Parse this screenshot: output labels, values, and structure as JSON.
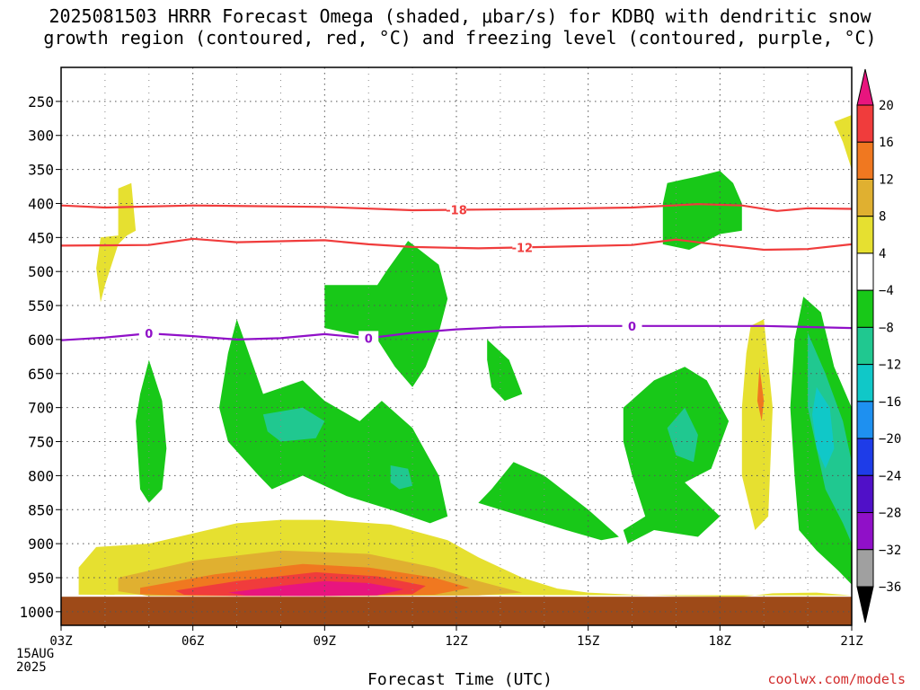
{
  "title": {
    "line1": "2025081503 HRRR Forecast Omega (shaded, μbar/s) for KDBQ with dendritic snow",
    "line2": "growth region (contoured, red, °C) and freezing level (contoured, purple, °C)"
  },
  "xlabel": "Forecast Time (UTC)",
  "credit": "coolwx.com/models",
  "date_label": [
    "15AUG",
    "2025"
  ],
  "chart_data": {
    "type": "heatmap",
    "x_ticks": [
      "03Z",
      "06Z",
      "09Z",
      "12Z",
      "15Z",
      "18Z",
      "21Z"
    ],
    "x_tick_hours": [
      3,
      6,
      9,
      12,
      15,
      18,
      21
    ],
    "y_ticks": [
      250,
      300,
      350,
      400,
      450,
      500,
      550,
      600,
      650,
      700,
      750,
      800,
      850,
      900,
      950,
      1000
    ],
    "y_range_hpa": [
      200,
      1020
    ],
    "surface_pressure_hpa": 978,
    "grid": true,
    "colorbar": {
      "labels": [
        "20",
        "16",
        "12",
        "8",
        "4",
        "−4",
        "−8",
        "−12",
        "−16",
        "−20",
        "−24",
        "−28",
        "−32",
        "−36"
      ],
      "colors": [
        "#e8157e",
        "#f03c3c",
        "#f07820",
        "#e0b030",
        "#e6e030",
        "#ffffff",
        "#18c818",
        "#20c890",
        "#10c8c8",
        "#1e90f0",
        "#1e3ce8",
        "#5010c8",
        "#9010c8",
        "#a0a0a0",
        "#000000"
      ],
      "placement": "right"
    },
    "contours": [
      {
        "label": "-18",
        "color": "#f03c3c",
        "kind": "dendritic_upper",
        "points": [
          [
            3.0,
            403
          ],
          [
            4.0,
            406
          ],
          [
            6.0,
            403
          ],
          [
            9.0,
            405
          ],
          [
            11.0,
            410
          ],
          [
            12.5,
            409
          ],
          [
            14.0,
            408
          ],
          [
            16.0,
            406
          ],
          [
            17.5,
            401
          ],
          [
            18.5,
            403
          ],
          [
            19.3,
            411
          ],
          [
            20.0,
            407
          ],
          [
            21.0,
            408
          ]
        ]
      },
      {
        "label": "-12",
        "color": "#f03c3c",
        "kind": "dendritic_lower",
        "points": [
          [
            3.0,
            462
          ],
          [
            5.0,
            461
          ],
          [
            6.0,
            452
          ],
          [
            7.0,
            457
          ],
          [
            9.0,
            454
          ],
          [
            10.0,
            460
          ],
          [
            11.0,
            464
          ],
          [
            12.5,
            466
          ],
          [
            14.0,
            464
          ],
          [
            16.0,
            461
          ],
          [
            17.0,
            453
          ],
          [
            18.0,
            461
          ],
          [
            19.0,
            468
          ],
          [
            20.0,
            467
          ],
          [
            21.0,
            460
          ]
        ]
      },
      {
        "label": "0",
        "color": "#9010c8",
        "kind": "freezing_level",
        "points": [
          [
            3.0,
            601
          ],
          [
            4.0,
            597
          ],
          [
            5.0,
            591
          ],
          [
            6.0,
            595
          ],
          [
            7.0,
            600
          ],
          [
            8.0,
            598
          ],
          [
            9.0,
            592
          ],
          [
            10.0,
            598
          ],
          [
            11.0,
            590
          ],
          [
            12.0,
            585
          ],
          [
            13.0,
            582
          ],
          [
            15.0,
            580
          ],
          [
            17.0,
            580
          ],
          [
            19.0,
            580
          ],
          [
            21.0,
            583
          ]
        ]
      }
    ],
    "omega_regions": [
      {
        "color": "#e6e030",
        "points": [
          [
            4.3,
            378
          ],
          [
            4.6,
            370
          ],
          [
            4.7,
            440
          ],
          [
            4.5,
            447
          ],
          [
            4.3,
            460
          ],
          [
            4.0,
            520
          ],
          [
            3.9,
            545
          ],
          [
            3.8,
            495
          ],
          [
            3.9,
            450
          ],
          [
            4.3,
            447
          ]
        ]
      },
      {
        "color": "#e6e030",
        "points": [
          [
            20.6,
            280
          ],
          [
            21.0,
            270
          ],
          [
            21.0,
            350
          ],
          [
            20.8,
            310
          ]
        ]
      },
      {
        "color": "#e6e030",
        "points": [
          [
            18.7,
            580
          ],
          [
            19.0,
            570
          ],
          [
            19.2,
            700
          ],
          [
            19.1,
            860
          ],
          [
            18.8,
            880
          ],
          [
            18.5,
            800
          ],
          [
            18.5,
            700
          ],
          [
            18.6,
            620
          ]
        ]
      },
      {
        "color": "#e6e030",
        "points": [
          [
            3.4,
            935
          ],
          [
            3.8,
            905
          ],
          [
            5.0,
            900
          ],
          [
            6.0,
            885
          ],
          [
            7.0,
            870
          ],
          [
            8.0,
            865
          ],
          [
            9.0,
            865
          ],
          [
            10.5,
            872
          ],
          [
            11.8,
            895
          ],
          [
            12.5,
            920
          ],
          [
            13.5,
            950
          ],
          [
            14.3,
            966
          ],
          [
            15.0,
            972
          ],
          [
            16.0,
            975
          ],
          [
            17.0,
            977
          ],
          [
            18.5,
            978
          ],
          [
            19.2,
            973
          ],
          [
            20.2,
            972
          ],
          [
            21.0,
            976
          ],
          [
            3.4,
            975
          ]
        ]
      },
      {
        "color": "#e0b030",
        "points": [
          [
            4.3,
            950
          ],
          [
            6.0,
            925
          ],
          [
            8.0,
            910
          ],
          [
            10.0,
            915
          ],
          [
            11.5,
            935
          ],
          [
            12.5,
            955
          ],
          [
            13.5,
            972
          ],
          [
            12.5,
            976
          ],
          [
            10.0,
            977
          ],
          [
            7.0,
            977
          ],
          [
            5.0,
            977
          ],
          [
            4.3,
            970
          ]
        ]
      },
      {
        "color": "#f07820",
        "points": [
          [
            4.8,
            965
          ],
          [
            6.5,
            945
          ],
          [
            8.5,
            930
          ],
          [
            10.0,
            935
          ],
          [
            11.5,
            950
          ],
          [
            12.3,
            965
          ],
          [
            11.5,
            975
          ],
          [
            9.0,
            977
          ],
          [
            6.0,
            977
          ],
          [
            4.8,
            974
          ]
        ]
      },
      {
        "color": "#f03c3c",
        "points": [
          [
            5.6,
            969
          ],
          [
            7.0,
            955
          ],
          [
            8.8,
            942
          ],
          [
            10.2,
            948
          ],
          [
            11.3,
            962
          ],
          [
            11.0,
            974
          ],
          [
            9.0,
            977
          ],
          [
            7.0,
            977
          ],
          [
            5.8,
            975
          ]
        ]
      },
      {
        "color": "#e8157e",
        "points": [
          [
            6.8,
            972
          ],
          [
            8.0,
            962
          ],
          [
            9.0,
            955
          ],
          [
            10.0,
            958
          ],
          [
            10.8,
            967
          ],
          [
            10.2,
            976
          ],
          [
            8.5,
            977
          ],
          [
            7.2,
            976
          ]
        ]
      },
      {
        "color": "#18c818",
        "points": [
          [
            5.0,
            630
          ],
          [
            5.3,
            690
          ],
          [
            5.4,
            760
          ],
          [
            5.3,
            820
          ],
          [
            5.0,
            840
          ],
          [
            4.8,
            820
          ],
          [
            4.7,
            720
          ],
          [
            4.8,
            680
          ]
        ]
      },
      {
        "color": "#18c818",
        "points": [
          [
            7.0,
            570
          ],
          [
            7.6,
            680
          ],
          [
            8.5,
            660
          ],
          [
            9.0,
            690
          ],
          [
            9.8,
            720
          ],
          [
            10.3,
            690
          ],
          [
            11.0,
            730
          ],
          [
            11.6,
            800
          ],
          [
            11.8,
            860
          ],
          [
            11.4,
            870
          ],
          [
            10.5,
            850
          ],
          [
            9.5,
            830
          ],
          [
            8.5,
            800
          ],
          [
            7.8,
            820
          ],
          [
            7.5,
            800
          ],
          [
            6.8,
            750
          ],
          [
            6.6,
            700
          ],
          [
            6.8,
            620
          ]
        ]
      },
      {
        "color": "#18c818",
        "points": [
          [
            10.9,
            455
          ],
          [
            11.6,
            490
          ],
          [
            11.8,
            540
          ],
          [
            11.6,
            590
          ],
          [
            11.3,
            640
          ],
          [
            11.0,
            670
          ],
          [
            10.6,
            640
          ],
          [
            10.2,
            600
          ],
          [
            9.0,
            583
          ],
          [
            9.0,
            520
          ],
          [
            10.2,
            520
          ],
          [
            10.4,
            500
          ]
        ]
      },
      {
        "color": "#18c818",
        "points": [
          [
            12.7,
            600
          ],
          [
            13.2,
            630
          ],
          [
            13.5,
            680
          ],
          [
            13.1,
            690
          ],
          [
            12.8,
            670
          ],
          [
            12.7,
            630
          ]
        ]
      },
      {
        "color": "#18c818",
        "points": [
          [
            12.8,
            820
          ],
          [
            13.3,
            780
          ],
          [
            14.0,
            800
          ],
          [
            15.0,
            850
          ],
          [
            15.7,
            890
          ],
          [
            15.3,
            895
          ],
          [
            14.5,
            880
          ],
          [
            13.5,
            860
          ],
          [
            12.5,
            840
          ]
        ]
      },
      {
        "color": "#18c818",
        "points": [
          [
            15.8,
            700
          ],
          [
            16.5,
            660
          ],
          [
            17.2,
            640
          ],
          [
            17.7,
            660
          ],
          [
            18.2,
            720
          ],
          [
            17.8,
            790
          ],
          [
            17.2,
            810
          ],
          [
            18.0,
            860
          ],
          [
            17.5,
            890
          ],
          [
            16.5,
            880
          ],
          [
            15.9,
            900
          ],
          [
            15.8,
            880
          ],
          [
            16.3,
            860
          ],
          [
            16.0,
            800
          ],
          [
            15.8,
            750
          ]
        ]
      },
      {
        "color": "#18c818",
        "points": [
          [
            17.5,
            360
          ],
          [
            18.0,
            352
          ],
          [
            18.3,
            370
          ],
          [
            18.5,
            400
          ],
          [
            18.5,
            440
          ],
          [
            18.0,
            445
          ],
          [
            17.7,
            455
          ],
          [
            17.3,
            468
          ],
          [
            16.7,
            460
          ],
          [
            16.7,
            400
          ],
          [
            16.8,
            370
          ]
        ]
      },
      {
        "color": "#18c818",
        "points": [
          [
            19.9,
            537
          ],
          [
            20.3,
            560
          ],
          [
            20.6,
            640
          ],
          [
            21.0,
            700
          ],
          [
            21.0,
            960
          ],
          [
            20.7,
            940
          ],
          [
            20.2,
            910
          ],
          [
            19.8,
            880
          ],
          [
            19.7,
            800
          ],
          [
            19.6,
            700
          ],
          [
            19.7,
            600
          ]
        ]
      },
      {
        "color": "#20c890",
        "points": [
          [
            7.6,
            710
          ],
          [
            8.5,
            700
          ],
          [
            9.0,
            720
          ],
          [
            8.8,
            745
          ],
          [
            8.0,
            750
          ],
          [
            7.7,
            735
          ]
        ]
      },
      {
        "color": "#20c890",
        "points": [
          [
            10.5,
            785
          ],
          [
            10.9,
            790
          ],
          [
            11.0,
            815
          ],
          [
            10.7,
            820
          ],
          [
            10.5,
            810
          ]
        ]
      },
      {
        "color": "#20c890",
        "points": [
          [
            16.8,
            730
          ],
          [
            17.2,
            700
          ],
          [
            17.5,
            740
          ],
          [
            17.4,
            780
          ],
          [
            17.0,
            770
          ]
        ]
      },
      {
        "color": "#20c890",
        "points": [
          [
            20.0,
            590
          ],
          [
            20.4,
            650
          ],
          [
            20.8,
            720
          ],
          [
            21.0,
            780
          ],
          [
            21.0,
            900
          ],
          [
            20.8,
            870
          ],
          [
            20.4,
            820
          ],
          [
            20.2,
            760
          ],
          [
            20.0,
            700
          ]
        ]
      },
      {
        "color": "#10c8c8",
        "points": [
          [
            20.2,
            670
          ],
          [
            20.5,
            700
          ],
          [
            20.6,
            760
          ],
          [
            20.4,
            790
          ],
          [
            20.2,
            760
          ],
          [
            20.1,
            710
          ]
        ]
      },
      {
        "color": "#f07820",
        "points": [
          [
            18.9,
            640
          ],
          [
            19.0,
            690
          ],
          [
            18.95,
            720
          ],
          [
            18.85,
            690
          ]
        ]
      }
    ]
  }
}
